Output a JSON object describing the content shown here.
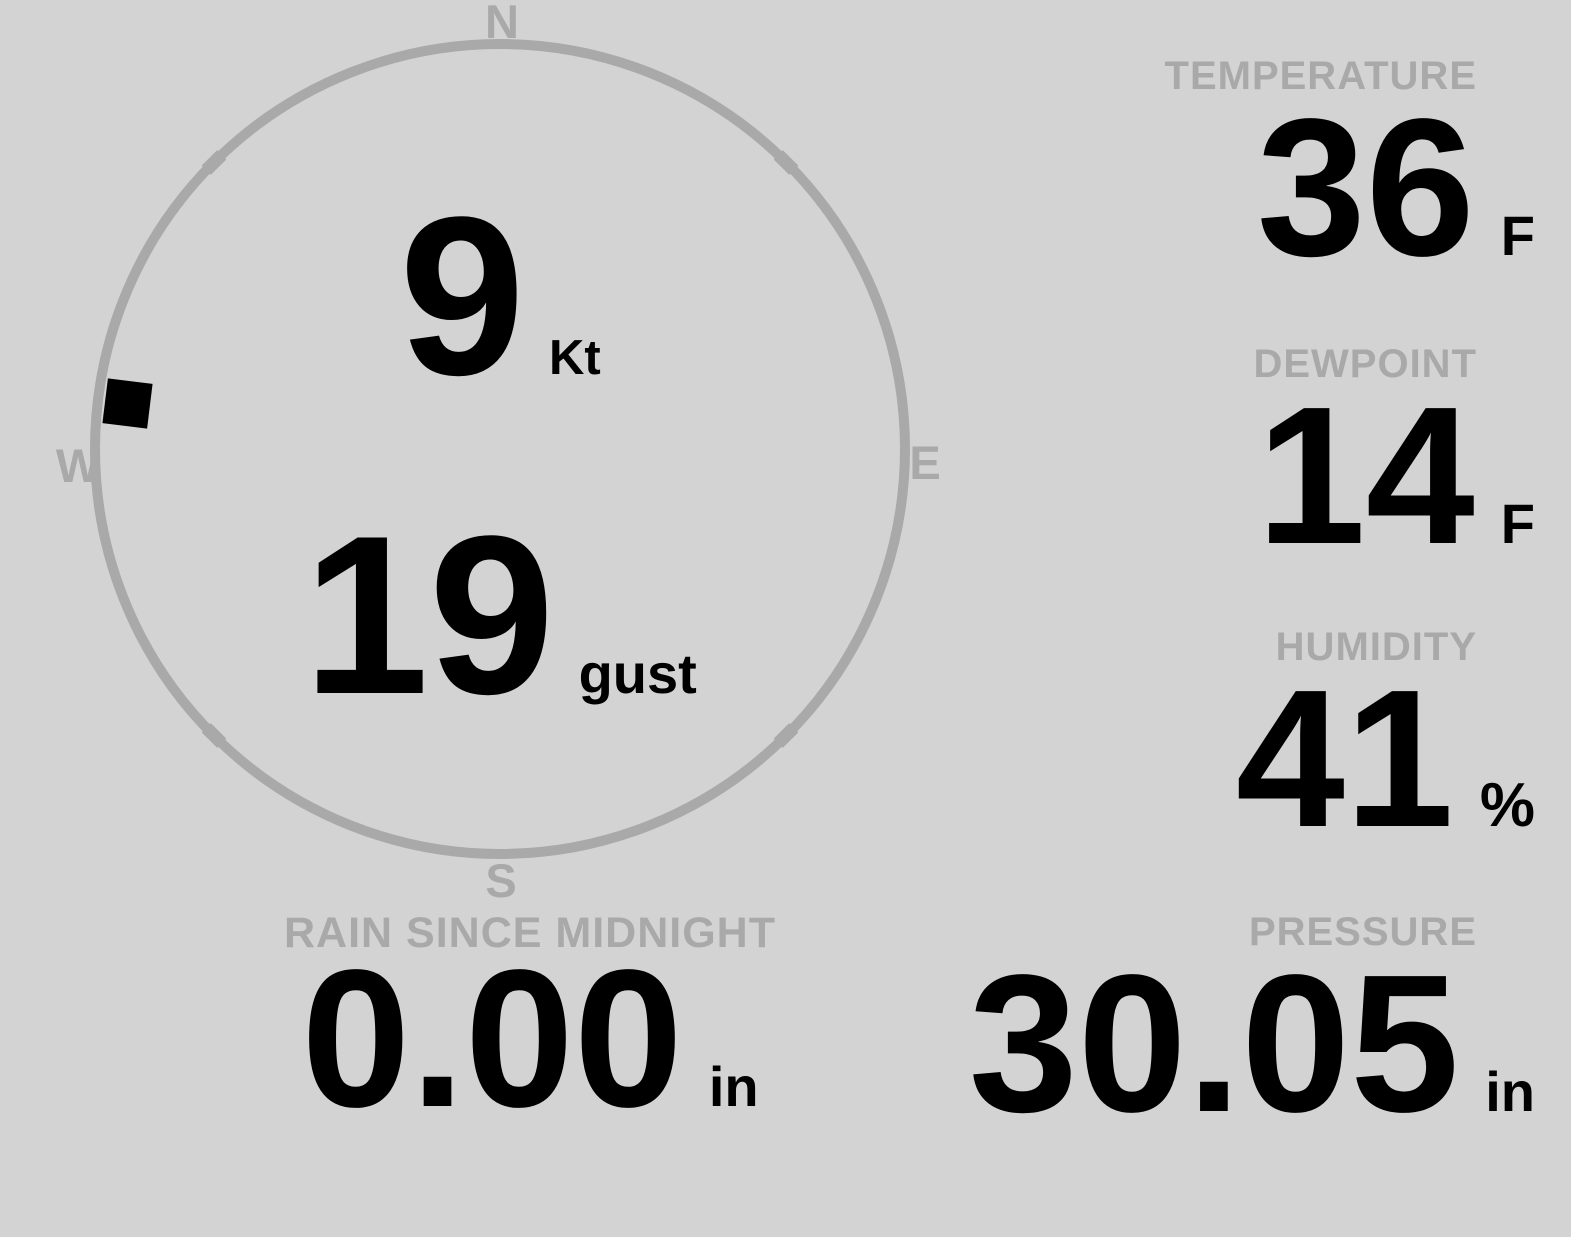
{
  "colors": {
    "background": "#d3d3d3",
    "muted": "#a9a9a9",
    "ink": "#000000"
  },
  "wind": {
    "compass": {
      "north": "N",
      "east": "E",
      "south": "S",
      "west": "W"
    },
    "direction_deg": 277,
    "speed": {
      "value": "9",
      "unit": "Kt"
    },
    "gust": {
      "value": "19",
      "unit": "gust"
    }
  },
  "metrics": {
    "temperature": {
      "label": "TEMPERATURE",
      "value": "36",
      "unit": "F"
    },
    "dewpoint": {
      "label": "DEWPOINT",
      "value": "14",
      "unit": "F"
    },
    "humidity": {
      "label": "HUMIDITY",
      "value": "41",
      "unit": "%"
    },
    "rain_since_midnight": {
      "label": "RAIN SINCE MIDNIGHT",
      "value": "0.00",
      "unit": "in"
    },
    "pressure": {
      "label": "PRESSURE",
      "value": "30.05",
      "unit": "in"
    }
  }
}
